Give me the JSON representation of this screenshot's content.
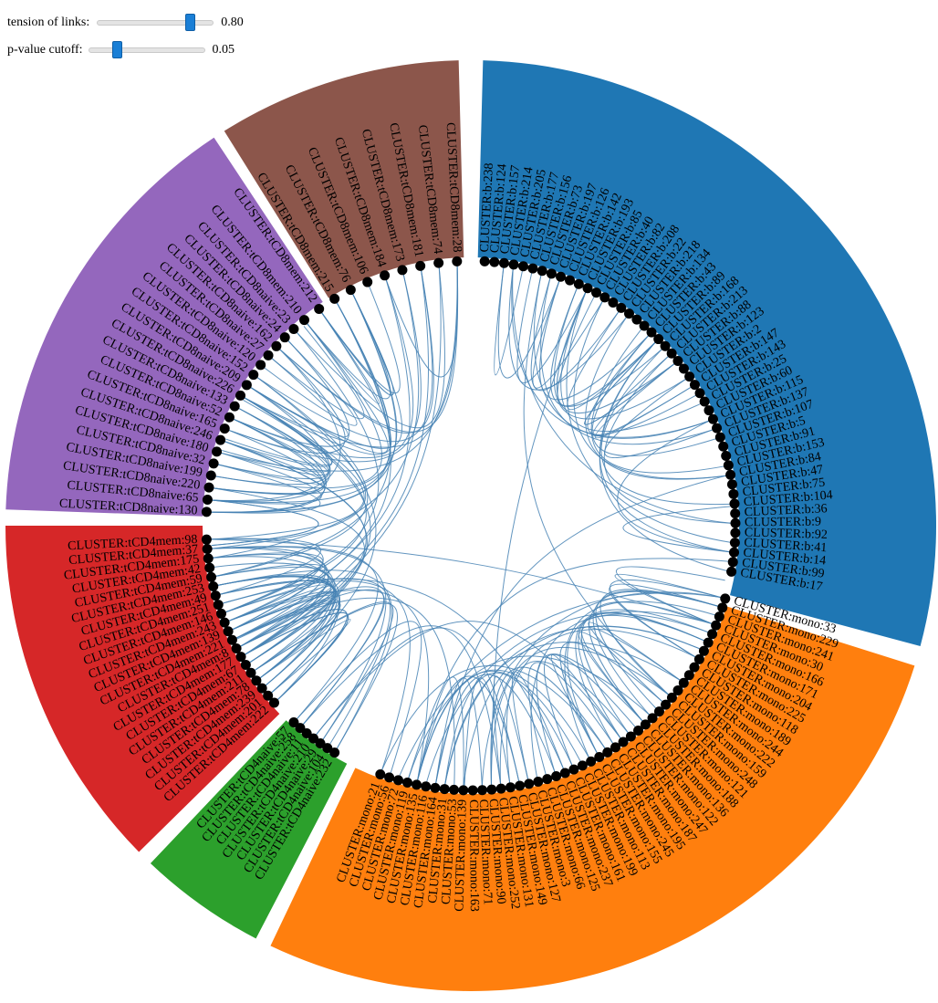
{
  "controls": {
    "tension": {
      "label": "tension of links:",
      "value": 0.8,
      "value_text": "0.80"
    },
    "pvalue": {
      "label": "p-value cutoff:",
      "value": 0.05,
      "value_text": "0.05"
    }
  },
  "groups": [
    {
      "name": "b",
      "color": "#1f77b4",
      "text_color": "#000000",
      "labels": [
        "CLUSTER:b:238",
        "CLUSTER:b:124",
        "CLUSTER:b:157",
        "CLUSTER:b:214",
        "CLUSTER:b:205",
        "CLUSTER:b:177",
        "CLUSTER:b:156",
        "CLUSTER:b:73",
        "CLUSTER:b:197",
        "CLUSTER:b:126",
        "CLUSTER:b:142",
        "CLUSTER:b:193",
        "CLUSTER:b:85",
        "CLUSTER:b:40",
        "CLUSTER:b:82",
        "CLUSTER:b:208",
        "CLUSTER:b:22",
        "CLUSTER:b:218",
        "CLUSTER:b:134",
        "CLUSTER:b:43",
        "CLUSTER:b:89",
        "CLUSTER:b:168",
        "CLUSTER:b:213",
        "CLUSTER:b:88",
        "CLUSTER:b:123",
        "CLUSTER:b:2",
        "CLUSTER:b:147",
        "CLUSTER:b:143",
        "CLUSTER:b:25",
        "CLUSTER:b:60",
        "CLUSTER:b:115",
        "CLUSTER:b:137",
        "CLUSTER:b:107",
        "CLUSTER:b:5",
        "CLUSTER:b:91",
        "CLUSTER:b:153",
        "CLUSTER:b:84",
        "CLUSTER:b:47",
        "CLUSTER:b:75",
        "CLUSTER:b:104",
        "CLUSTER:b:36",
        "CLUSTER:b:9",
        "CLUSTER:b:92",
        "CLUSTER:b:41",
        "CLUSTER:b:14",
        "CLUSTER:b:99",
        "CLUSTER:b:17"
      ]
    },
    {
      "name": "mono",
      "color": "#ff7f0e",
      "text_color": "#000000",
      "labels": [
        "CLUSTER:mono:33",
        "CLUSTER:mono:229",
        "CLUSTER:mono:241",
        "CLUSTER:mono:30",
        "CLUSTER:mono:166",
        "CLUSTER:mono:171",
        "CLUSTER:mono:204",
        "CLUSTER:mono:225",
        "CLUSTER:mono:118",
        "CLUSTER:mono:189",
        "CLUSTER:mono:244",
        "CLUSTER:mono:222",
        "CLUSTER:mono:159",
        "CLUSTER:mono:248",
        "CLUSTER:mono:121",
        "CLUSTER:mono:188",
        "CLUSTER:mono:136",
        "CLUSTER:mono:122",
        "CLUSTER:mono:247",
        "CLUSTER:mono:187",
        "CLUSTER:mono:195",
        "CLUSTER:mono:245",
        "CLUSTER:mono:155",
        "CLUSTER:mono:113",
        "CLUSTER:mono:199",
        "CLUSTER:mono:161",
        "CLUSTER:mono:237",
        "CLUSTER:mono:125",
        "CLUSTER:mono:66",
        "CLUSTER:mono:3",
        "CLUSTER:mono:127",
        "CLUSTER:mono:149",
        "CLUSTER:mono:131",
        "CLUSTER:mono:252",
        "CLUSTER:mono:90",
        "CLUSTER:mono:71",
        "CLUSTER:mono:163",
        "CLUSTER:mono:139",
        "CLUSTER:mono:53",
        "CLUSTER:mono:31",
        "CLUSTER:mono:164",
        "CLUSTER:mono:116",
        "CLUSTER:mono:135",
        "CLUSTER:mono:119",
        "CLUSTER:mono:72",
        "CLUSTER:mono:56",
        "CLUSTER:mono:21"
      ]
    },
    {
      "name": "tCD4naive",
      "color": "#2ca02c",
      "text_color": "#000000",
      "labels": [
        "CLUSTER:tCD4naive:232",
        "CLUSTER:tCD4naive:104",
        "CLUSTER:tCD4naive:29",
        "CLUSTER:tCD4naive:210",
        "CLUSTER:tCD4naive:11",
        "CLUSTER:tCD4naive:258",
        "CLUSTER:tCD4naive:57"
      ]
    },
    {
      "name": "tCD4mem",
      "color": "#d62728",
      "text_color": "#000000",
      "labels": [
        "CLUSTER:tCD4mem:222",
        "CLUSTER:tCD4mem:201",
        "CLUSTER:tCD4mem:239",
        "CLUSTER:tCD4mem:78",
        "CLUSTER:tCD4mem:211",
        "CLUSTER:tCD4mem:67",
        "CLUSTER:tCD4mem:177",
        "CLUSTER:tCD4mem:8",
        "CLUSTER:tCD4mem:221",
        "CLUSTER:tCD4mem:139",
        "CLUSTER:tCD4mem:243",
        "CLUSTER:tCD4mem:146",
        "CLUSTER:tCD4mem:251",
        "CLUSTER:tCD4mem:49",
        "CLUSTER:tCD4mem:253",
        "CLUSTER:tCD4mem:59",
        "CLUSTER:tCD4mem:42",
        "CLUSTER:tCD4mem:175",
        "CLUSTER:tCD4mem:37",
        "CLUSTER:tCD4mem:98"
      ]
    },
    {
      "name": "tCD8naive",
      "color": "#9467bd",
      "text_color": "#000000",
      "labels": [
        "CLUSTER:tCD8naive:130",
        "CLUSTER:tCD8naive:65",
        "CLUSTER:tCD8naive:220",
        "CLUSTER:tCD8naive:199",
        "CLUSTER:tCD8naive:32",
        "CLUSTER:tCD8naive:180",
        "CLUSTER:tCD8naive:246",
        "CLUSTER:tCD8naive:165",
        "CLUSTER:tCD8naive:52",
        "CLUSTER:tCD8naive:133",
        "CLUSTER:tCD8naive:226",
        "CLUSTER:tCD8naive:209",
        "CLUSTER:tCD8naive:152",
        "CLUSTER:tCD8naive:120",
        "CLUSTER:tCD8naive:27",
        "CLUSTER:tCD8naive:162",
        "CLUSTER:tCD8naive:24",
        "CLUSTER:tCD8naive:23"
      ]
    },
    {
      "name": "tCD8mem",
      "color": "#8c564b",
      "text_color": "#000000",
      "labels": [
        "CLUSTER:tCD8mem:210",
        "CLUSTER:tCD8mem:212",
        "CLUSTER:tCD8mem:215",
        "CLUSTER:tCD8mem:76",
        "CLUSTER:tCD8mem:106",
        "CLUSTER:tCD8mem:184",
        "CLUSTER:tCD8mem:173",
        "CLUSTER:tCD8mem:181",
        "CLUSTER:tCD8mem:74",
        "CLUSTER:tCD8mem:28"
      ]
    }
  ],
  "colors": {
    "link": "#4682b4",
    "node": "#000000"
  }
}
